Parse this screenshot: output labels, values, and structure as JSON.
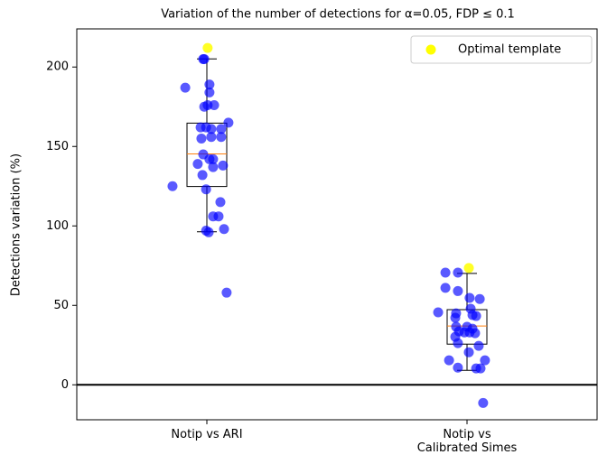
{
  "chart_data": {
    "type": "box",
    "title": "Variation of the number of detections for α=0.05, FDP ≤ 0.1",
    "ylabel": "Detections variation (%)",
    "categories": [
      "Notip vs ARI",
      "Notip vs\nCalibrated Simes"
    ],
    "xlim": [
      0.5,
      2.5
    ],
    "ylim": [
      -22,
      224
    ],
    "yticks": [
      0,
      50,
      100,
      150,
      200
    ],
    "hline": 0,
    "boxes": [
      {
        "whislo": 96.3,
        "q1": 124.8,
        "median": 145.3,
        "q3": 164.7,
        "whishi": 205.1
      },
      {
        "whislo": 9.1,
        "q1": 25.6,
        "median": 37,
        "q3": 47.3,
        "whishi": 70.1
      }
    ],
    "box_color": "#000000",
    "median_color": "#ff7f0e",
    "points": {
      "color": "#0000ff",
      "x": [
        0.986,
        0.99,
        0.917,
        1.01,
        1.01,
        0.99,
        1.003,
        1.028,
        1.083,
        0.976,
        0.997,
        1.017,
        1.055,
        0.979,
        1.017,
        1.055,
        0.986,
        1.01,
        1.024,
        0.965,
        1.062,
        1.024,
        0.983,
        0.868,
        0.997,
        1.052,
        1.024,
        1.045,
        0.997,
        1.007,
        1.066,
        1.076,
        1.917,
        1.965,
        1.917,
        1.965,
        2.01,
        2.049,
        1.889,
        1.958,
        2.014,
        2.021,
        2.035,
        1.955,
        1.958,
        2.0,
        2.021,
        1.969,
        1.99,
        2.01,
        2.031,
        1.955,
        1.965,
        2.045,
        2.007,
        1.931,
        2.069,
        1.965,
        2.035,
        2.052,
        2.062
      ],
      "y": [
        205,
        205,
        187,
        189,
        184,
        175,
        176,
        176,
        165,
        162,
        162,
        161,
        161,
        155,
        156,
        156,
        145,
        142,
        142,
        139,
        138,
        137,
        132,
        125,
        123,
        115,
        106,
        106,
        97,
        96,
        98,
        58,
        70.6,
        70.6,
        61,
        59,
        54.7,
        54,
        45.6,
        45,
        47.9,
        43.9,
        43.3,
        42.2,
        36.5,
        36.5,
        35.3,
        33.6,
        33,
        33,
        32.5,
        30.2,
        26.2,
        24.5,
        20.5,
        15.4,
        15.4,
        10.8,
        10.3,
        10.3,
        -11.4
      ]
    },
    "optimal": {
      "name": "Optimal template",
      "color": "#ffff00",
      "x": [
        1.003,
        2.007
      ],
      "y": [
        212,
        73.5
      ]
    },
    "legend": "upper right"
  }
}
